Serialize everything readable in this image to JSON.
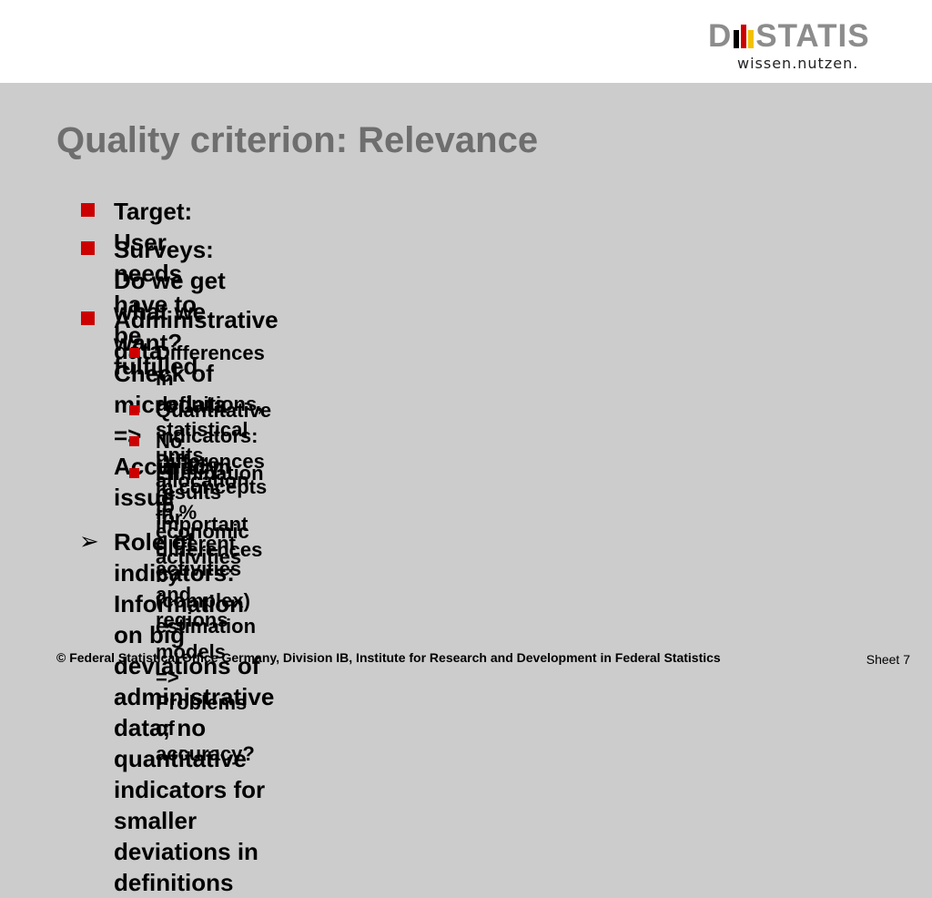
{
  "logo": {
    "word_left": "D",
    "word_right": "STATIS",
    "tagline": "wissen.nutzen.",
    "flag_colors": [
      "#000000",
      "#cc0000",
      "#f2c200"
    ]
  },
  "slide": {
    "title": "Quality criterion: Relevance",
    "bullets": [
      {
        "text": "Target: User needs have to be fulfilled"
      },
      {
        "line1": "Surveys: Do we get what we want?",
        "line2": "Check of microdata => Accuracy issue"
      },
      {
        "text": "Administrative data:"
      }
    ],
    "sub_bullets": [
      {
        "line1": "Differences in definitions, statistical units, allocation to economic",
        "line2": "activities"
      },
      {
        "text": "Quantitative indicators: Differences in concepts in %"
      },
      {
        "text": "No uniform results for different activities and regions"
      },
      {
        "line1": "Elimination of important differences by (complex) estimation models",
        "line2": "=> Problems of accuracy?"
      }
    ],
    "arrow_bullet": {
      "arrow": "➢",
      "line1": "Role of indicators: Information on big deviations of",
      "line2": "administrative data; no quantitative indicators for smaller",
      "line3": "deviations in definitions"
    },
    "bullet_color": "#cc0000"
  },
  "footer": {
    "copyright": "© Federal Statistical Office Germany, Division IB, Institute for Research and Development in Federal Statistics",
    "sheet": "Sheet 7"
  }
}
